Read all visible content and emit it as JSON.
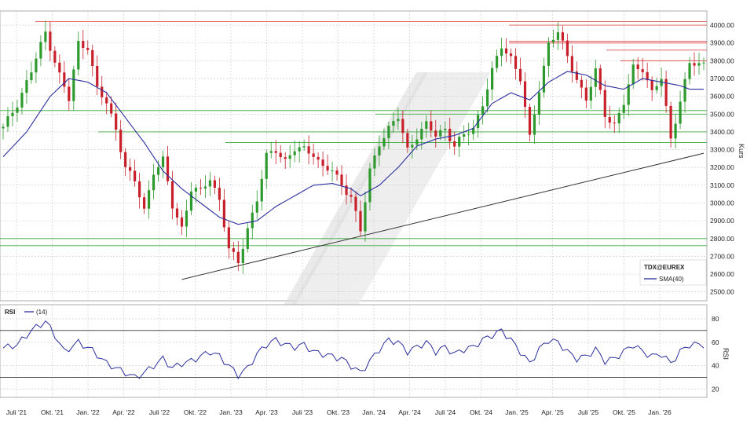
{
  "chart_data": [
    {
      "type": "candlestick",
      "instrument": "TDX@EUREX",
      "indicator_label": "SMA(40)",
      "ylabel": "Kurs",
      "ylim": [
        2450,
        4080
      ],
      "yticks": [
        2500,
        2600,
        2700,
        2800,
        2900,
        3000,
        3100,
        3200,
        3300,
        3400,
        3500,
        3600,
        3700,
        3800,
        3900,
        4000
      ],
      "ytick_labels": [
        "2500.00",
        "2600.00",
        "2700.00",
        "2800.00",
        "2900.00",
        "3000.00",
        "3100.00",
        "3200.00",
        "3300.00",
        "3400.00",
        "3500.00",
        "3600.00",
        "3700.00",
        "3800.00",
        "3900.00",
        "4000.00"
      ],
      "xtick_labels": [
        "Juli '21",
        "Okt. '21",
        "Jan. '22",
        "Apr. '22",
        "Juli '22",
        "Okt. '22",
        "Jan. '23",
        "Apr. '23",
        "Juli '23",
        "Okt. '23",
        "Jan. '24",
        "Apr. '24",
        "Juli '24",
        "Okt. '24",
        "Jan. '25",
        "Apr. '25",
        "Juli '25",
        "Okt. '25",
        "Jan. '26"
      ],
      "grid": true,
      "legend": "bottom-right",
      "close_path": [
        [
          0,
          3420
        ],
        [
          3,
          3560
        ],
        [
          6,
          3740
        ],
        [
          9,
          3960
        ],
        [
          12,
          3720
        ],
        [
          14,
          3580
        ],
        [
          16,
          3900
        ],
        [
          18,
          3880
        ],
        [
          20,
          3640
        ],
        [
          22,
          3560
        ],
        [
          24,
          3420
        ],
        [
          26,
          3200
        ],
        [
          28,
          3120
        ],
        [
          30,
          2960
        ],
        [
          32,
          3180
        ],
        [
          34,
          3240
        ],
        [
          36,
          2980
        ],
        [
          38,
          2860
        ],
        [
          40,
          3080
        ],
        [
          42,
          3060
        ],
        [
          44,
          3140
        ],
        [
          46,
          3020
        ],
        [
          48,
          2740
        ],
        [
          50,
          2660
        ],
        [
          52,
          2860
        ],
        [
          54,
          3020
        ],
        [
          56,
          3260
        ],
        [
          58,
          3300
        ],
        [
          60,
          3240
        ],
        [
          62,
          3300
        ],
        [
          64,
          3300
        ],
        [
          66,
          3280
        ],
        [
          68,
          3200
        ],
        [
          70,
          3180
        ],
        [
          72,
          3100
        ],
        [
          74,
          3040
        ],
        [
          76,
          2840
        ],
        [
          78,
          3180
        ],
        [
          80,
          3340
        ],
        [
          82,
          3420
        ],
        [
          84,
          3480
        ],
        [
          86,
          3300
        ],
        [
          88,
          3380
        ],
        [
          90,
          3440
        ],
        [
          92,
          3380
        ],
        [
          94,
          3420
        ],
        [
          96,
          3320
        ],
        [
          98,
          3380
        ],
        [
          100,
          3420
        ],
        [
          102,
          3560
        ],
        [
          104,
          3740
        ],
        [
          106,
          3880
        ],
        [
          108,
          3820
        ],
        [
          110,
          3700
        ],
        [
          112,
          3360
        ],
        [
          114,
          3640
        ],
        [
          116,
          3900
        ],
        [
          118,
          3960
        ],
        [
          120,
          3820
        ],
        [
          122,
          3700
        ],
        [
          124,
          3580
        ],
        [
          126,
          3740
        ],
        [
          128,
          3500
        ],
        [
          130,
          3440
        ],
        [
          132,
          3560
        ],
        [
          134,
          3760
        ],
        [
          136,
          3760
        ],
        [
          138,
          3620
        ],
        [
          140,
          3700
        ],
        [
          142,
          3360
        ],
        [
          144,
          3580
        ],
        [
          146,
          3780
        ]
      ],
      "sma_path": [
        [
          0,
          3260
        ],
        [
          5,
          3400
        ],
        [
          10,
          3600
        ],
        [
          14,
          3700
        ],
        [
          18,
          3680
        ],
        [
          22,
          3620
        ],
        [
          26,
          3480
        ],
        [
          30,
          3340
        ],
        [
          34,
          3180
        ],
        [
          38,
          3080
        ],
        [
          42,
          3000
        ],
        [
          46,
          2920
        ],
        [
          50,
          2880
        ],
        [
          54,
          2900
        ],
        [
          58,
          2980
        ],
        [
          62,
          3040
        ],
        [
          66,
          3100
        ],
        [
          70,
          3110
        ],
        [
          74,
          3080
        ],
        [
          76,
          3040
        ],
        [
          80,
          3100
        ],
        [
          84,
          3200
        ],
        [
          88,
          3320
        ],
        [
          92,
          3360
        ],
        [
          96,
          3380
        ],
        [
          100,
          3420
        ],
        [
          104,
          3560
        ],
        [
          108,
          3620
        ],
        [
          112,
          3580
        ],
        [
          116,
          3680
        ],
        [
          120,
          3740
        ],
        [
          124,
          3720
        ],
        [
          128,
          3660
        ],
        [
          132,
          3640
        ],
        [
          136,
          3700
        ],
        [
          140,
          3680
        ],
        [
          144,
          3660
        ],
        [
          146,
          3640
        ]
      ],
      "support_lines_green": [
        3520,
        3500,
        3400,
        3340,
        2800,
        2760
      ],
      "resistance_lines_red": [
        4020,
        4000,
        3910,
        3900,
        3860,
        3800
      ],
      "trendline": [
        [
          38,
          2570
        ],
        [
          149,
          3280
        ]
      ]
    },
    {
      "type": "line",
      "indicator_label": "RSI",
      "period_label": "(14)",
      "ylim": [
        13,
        92
      ],
      "yticks": [
        20,
        40,
        60,
        80
      ],
      "ytick_labels": [
        "20",
        "40",
        "60",
        "80"
      ],
      "levels": [
        70,
        30
      ],
      "rsi_path": [
        [
          0,
          55
        ],
        [
          3,
          58
        ],
        [
          6,
          70
        ],
        [
          9,
          78
        ],
        [
          11,
          66
        ],
        [
          13,
          52
        ],
        [
          16,
          60
        ],
        [
          19,
          53
        ],
        [
          22,
          42
        ],
        [
          24,
          38
        ],
        [
          26,
          34
        ],
        [
          28,
          30
        ],
        [
          30,
          34
        ],
        [
          32,
          40
        ],
        [
          34,
          46
        ],
        [
          36,
          38
        ],
        [
          38,
          42
        ],
        [
          40,
          44
        ],
        [
          42,
          48
        ],
        [
          44,
          52
        ],
        [
          46,
          48
        ],
        [
          48,
          40
        ],
        [
          50,
          32
        ],
        [
          52,
          38
        ],
        [
          54,
          50
        ],
        [
          56,
          58
        ],
        [
          58,
          62
        ],
        [
          60,
          58
        ],
        [
          62,
          56
        ],
        [
          64,
          58
        ],
        [
          66,
          52
        ],
        [
          68,
          50
        ],
        [
          70,
          48
        ],
        [
          72,
          46
        ],
        [
          74,
          40
        ],
        [
          76,
          34
        ],
        [
          78,
          44
        ],
        [
          80,
          54
        ],
        [
          82,
          62
        ],
        [
          84,
          60
        ],
        [
          86,
          52
        ],
        [
          88,
          56
        ],
        [
          90,
          60
        ],
        [
          92,
          52
        ],
        [
          94,
          56
        ],
        [
          96,
          50
        ],
        [
          98,
          54
        ],
        [
          100,
          56
        ],
        [
          102,
          62
        ],
        [
          104,
          66
        ],
        [
          106,
          70
        ],
        [
          108,
          62
        ],
        [
          110,
          52
        ],
        [
          112,
          42
        ],
        [
          114,
          54
        ],
        [
          116,
          62
        ],
        [
          118,
          60
        ],
        [
          120,
          52
        ],
        [
          122,
          46
        ],
        [
          124,
          48
        ],
        [
          126,
          54
        ],
        [
          128,
          44
        ],
        [
          130,
          46
        ],
        [
          132,
          52
        ],
        [
          134,
          58
        ],
        [
          136,
          52
        ],
        [
          138,
          48
        ],
        [
          140,
          50
        ],
        [
          142,
          42
        ],
        [
          144,
          52
        ],
        [
          146,
          58
        ]
      ]
    }
  ]
}
